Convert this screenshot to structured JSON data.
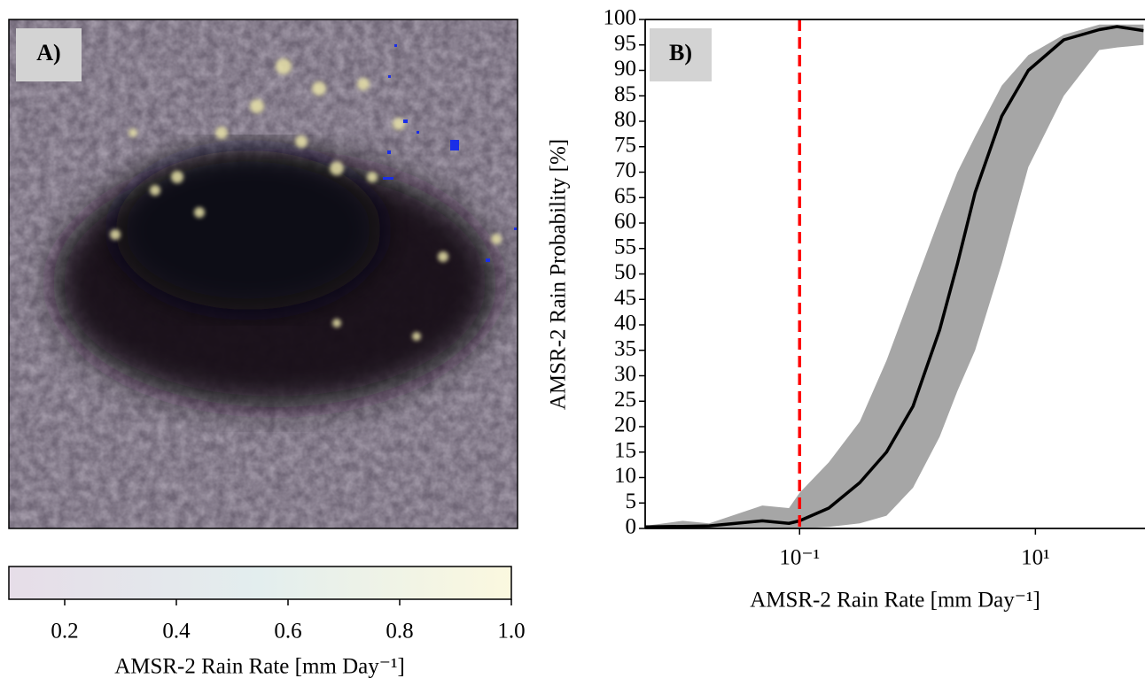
{
  "chart_data": [
    {
      "type": "colorbar",
      "panel_label": "A)",
      "xlabel": "AMSR-2 Rain Rate [mm Day⁻¹]",
      "xlim": [
        0.1,
        1.0
      ],
      "xticks": [
        0.2,
        0.4,
        0.6,
        0.8,
        {
          "value": 1,
          "label": "1.0"
        }
      ],
      "colors": [
        "#e6dde8",
        "#e3eeee",
        "#fbf8df"
      ]
    },
    {
      "type": "band-line",
      "panel_label": "B)",
      "xlabel": "AMSR-2 Rain Rate [mm Day⁻¹]",
      "ylabel": "AMSR-2 Rain Probability [%]",
      "log_x": true,
      "xlim": [
        0.0049,
        85
      ],
      "xticks": [
        {
          "value": 0.1,
          "label": "10⁻¹"
        },
        {
          "value": 10,
          "label": "10¹"
        }
      ],
      "ylim": [
        0,
        100
      ],
      "yticks": [
        0,
        5,
        10,
        15,
        20,
        25,
        30,
        35,
        40,
        45,
        50,
        55,
        60,
        65,
        70,
        75,
        80,
        85,
        90,
        95,
        100
      ],
      "x": [
        0.0049,
        0.0102,
        0.0171,
        0.0483,
        0.0813,
        0.1,
        0.177,
        0.324,
        0.546,
        0.916,
        1.54,
        2.18,
        3.08,
        5.18,
        8.71,
        17.4,
        34.8,
        49.2,
        82.6
      ],
      "mean": {
        "color": "#000000",
        "values": [
          0.3,
          0.4,
          0.5,
          1.5,
          1.0,
          1.5,
          4,
          9,
          15,
          24,
          39,
          52,
          66,
          81,
          90,
          96,
          98,
          98.6,
          97.8
        ]
      },
      "band": {
        "color": "#a6a6a6",
        "lower": [
          0,
          0,
          0,
          0,
          0,
          0,
          0.3,
          1,
          2.5,
          8,
          18,
          27,
          35,
          52,
          71,
          85,
          94,
          94.5,
          95
        ],
        "upper": [
          0.5,
          1.5,
          1,
          4.5,
          4,
          7,
          13,
          21,
          33,
          47,
          61,
          70,
          77,
          87,
          93,
          97,
          99,
          99,
          99
        ]
      },
      "vline": 0.1,
      "vline_color": "#ff0000"
    }
  ]
}
